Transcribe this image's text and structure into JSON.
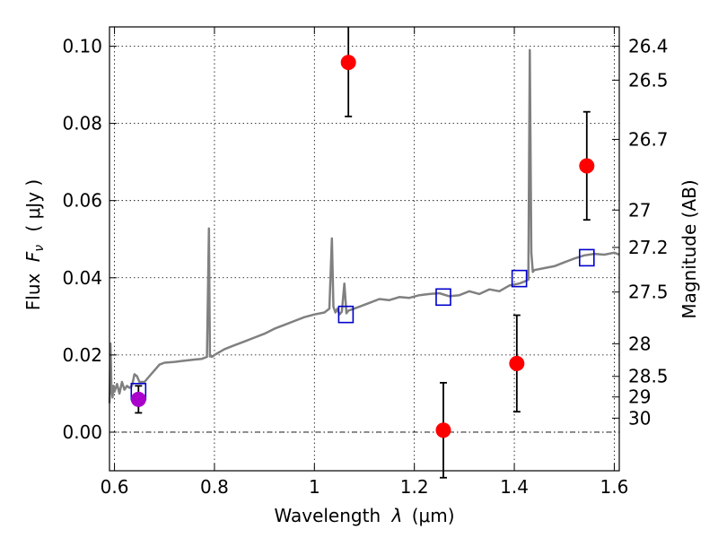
{
  "chart_data": {
    "type": "scatter",
    "xlabel_prefix": "Wavelength",
    "xlabel_sym": "λ",
    "xlabel_unit": "(μm)",
    "ylabel_prefix": "Flux",
    "ylabel_sym": "F",
    "ylabel_sub": "ν",
    "ylabel_unit": "( μJy )",
    "y2label": "Magnitude (AB)",
    "xlim": [
      0.59,
      1.61
    ],
    "ylim": [
      -0.01,
      0.105
    ],
    "grid": true,
    "x_ticks": [
      0.6,
      0.8,
      1.0,
      1.2,
      1.4,
      1.6
    ],
    "x_tick_labels": [
      "0.6",
      "0.8",
      "1",
      "1.2",
      "1.4",
      "1.6"
    ],
    "y_ticks": [
      0.0,
      0.02,
      0.04,
      0.06,
      0.08,
      0.1
    ],
    "y_tick_labels": [
      "0.00",
      "0.02",
      "0.04",
      "0.06",
      "0.08",
      "0.10"
    ],
    "mag_tick_labels": [
      "26.4",
      "26.5",
      "26.7",
      "27",
      "27.2",
      "27.5",
      "28",
      "28.5",
      "29",
      "30"
    ],
    "series": [
      {
        "kind": "line",
        "color": "#808080",
        "x": [
          0.59,
          0.592,
          0.594,
          0.596,
          0.598,
          0.6,
          0.605,
          0.61,
          0.615,
          0.62,
          0.625,
          0.63,
          0.635,
          0.64,
          0.645,
          0.65,
          0.66,
          0.67,
          0.68,
          0.69,
          0.7,
          0.72,
          0.74,
          0.76,
          0.775,
          0.785,
          0.789,
          0.791,
          0.793,
          0.795,
          0.8,
          0.82,
          0.84,
          0.86,
          0.88,
          0.9,
          0.92,
          0.94,
          0.96,
          0.98,
          1.0,
          1.02,
          1.03,
          1.035,
          1.038,
          1.042,
          1.046,
          1.05,
          1.055,
          1.06,
          1.064,
          1.068,
          1.075,
          1.09,
          1.11,
          1.13,
          1.15,
          1.17,
          1.19,
          1.21,
          1.23,
          1.25,
          1.27,
          1.29,
          1.31,
          1.33,
          1.35,
          1.37,
          1.39,
          1.41,
          1.42,
          1.428,
          1.431,
          1.434,
          1.437,
          1.44,
          1.46,
          1.48,
          1.5,
          1.52,
          1.54,
          1.56,
          1.58,
          1.6,
          1.61
        ],
        "y": [
          0.0075,
          0.023,
          0.011,
          0.009,
          0.012,
          0.0105,
          0.0125,
          0.01,
          0.013,
          0.011,
          0.012,
          0.0115,
          0.012,
          0.015,
          0.0145,
          0.013,
          0.013,
          0.0145,
          0.016,
          0.0175,
          0.018,
          0.0182,
          0.0185,
          0.0188,
          0.019,
          0.0195,
          0.0528,
          0.0196,
          0.0198,
          0.0195,
          0.02,
          0.0215,
          0.0225,
          0.0235,
          0.0245,
          0.0255,
          0.0268,
          0.0278,
          0.0288,
          0.0298,
          0.0305,
          0.031,
          0.032,
          0.0502,
          0.0325,
          0.031,
          0.032,
          0.0305,
          0.0312,
          0.0385,
          0.0308,
          0.0315,
          0.0318,
          0.0325,
          0.0335,
          0.0345,
          0.0342,
          0.035,
          0.0348,
          0.0355,
          0.0358,
          0.036,
          0.0352,
          0.0355,
          0.0365,
          0.0358,
          0.037,
          0.0365,
          0.038,
          0.0385,
          0.039,
          0.0395,
          0.099,
          0.0465,
          0.0415,
          0.042,
          0.0425,
          0.043,
          0.044,
          0.045,
          0.0458,
          0.0462,
          0.046,
          0.0465,
          0.046
        ]
      },
      {
        "kind": "square",
        "color": "#0000cc",
        "x": [
          0.648,
          1.063,
          1.258,
          1.41,
          1.545
        ],
        "y": [
          0.0105,
          0.0305,
          0.035,
          0.0398,
          0.0452
        ]
      },
      {
        "kind": "circle",
        "color": "#ff0000",
        "x": [
          1.068,
          1.258,
          1.405,
          1.545
        ],
        "y": [
          0.0958,
          0.0005,
          0.0178,
          0.069
        ],
        "err": [
          0.014,
          0.0123,
          0.0125,
          0.014
        ]
      },
      {
        "kind": "circle",
        "color": "#aa00cc",
        "x": [
          0.648
        ],
        "y": [
          0.0085
        ],
        "err": [
          0.0035
        ]
      }
    ]
  }
}
